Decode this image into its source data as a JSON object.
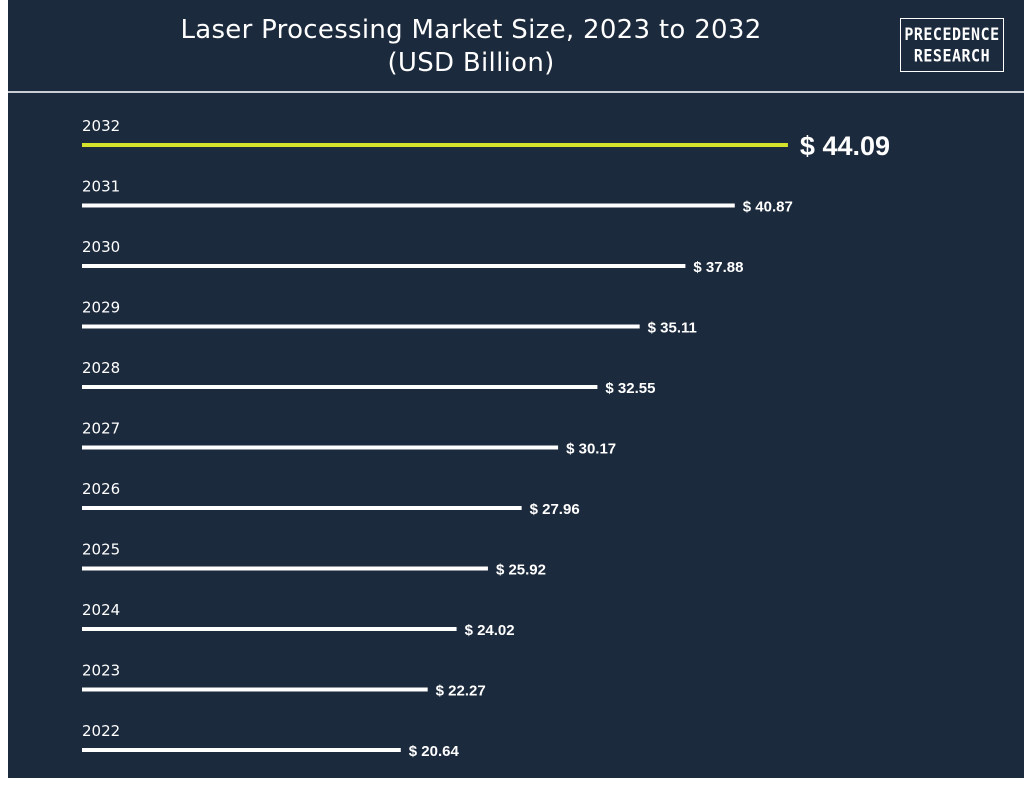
{
  "header": {
    "title_line1": "Laser Processing Market Size, 2023 to 2032",
    "title_line2": "(USD Billion)",
    "logo_line1": "PRECEDENCE",
    "logo_line2": "RESEARCH"
  },
  "colors": {
    "background": "#1c2a3d",
    "bar": "#ffffff",
    "highlight": "#d4e22b",
    "text": "#ffffff"
  },
  "chart_data": {
    "type": "bar",
    "orientation": "horizontal",
    "title": "Laser Processing Market Size, 2023 to 2032 (USD Billion)",
    "categories": [
      "2032",
      "2031",
      "2030",
      "2029",
      "2028",
      "2027",
      "2026",
      "2025",
      "2024",
      "2023",
      "2022"
    ],
    "values": [
      44.09,
      40.87,
      37.88,
      35.11,
      32.55,
      30.17,
      27.96,
      25.92,
      24.02,
      22.27,
      20.64
    ],
    "value_labels": [
      "$ 44.09",
      "$ 40.87",
      "$ 37.88",
      "$ 35.11",
      "$ 32.55",
      "$ 30.17",
      "$ 27.96",
      "$ 25.92",
      "$ 24.02",
      "$ 22.27",
      "$ 20.64"
    ],
    "highlighted_category": "2032",
    "grid": false,
    "legend": "none"
  }
}
